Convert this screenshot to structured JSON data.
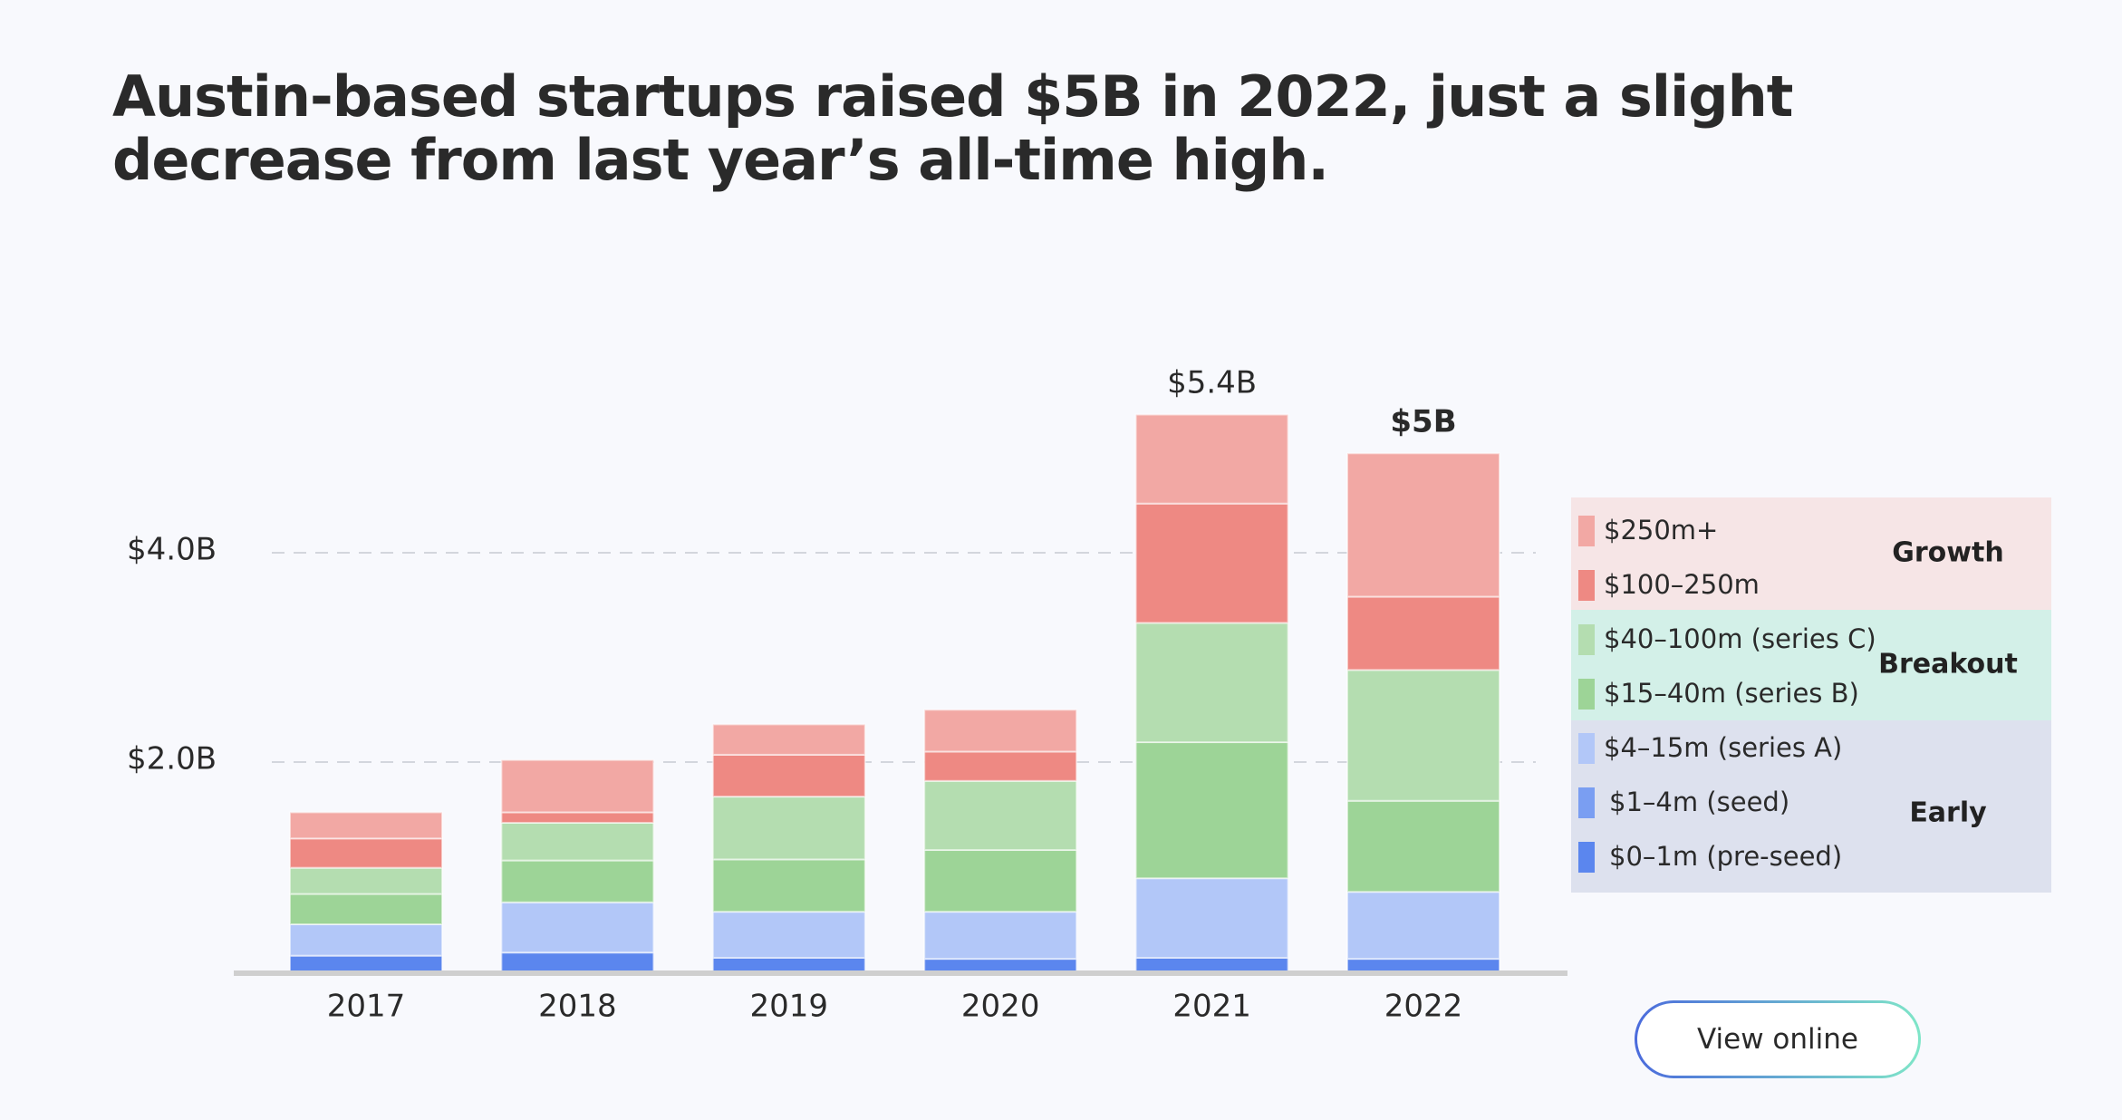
{
  "title": "Austin-based startups raised $5B in 2022, just a slight decrease from last year’s all-time high.",
  "view_online_label": "View online",
  "chart_data": {
    "type": "bar",
    "stacked": true,
    "categories": [
      "2017",
      "2018",
      "2019",
      "2020",
      "2021",
      "2022"
    ],
    "y_ticks": [
      {
        "value": 2.0,
        "label": "$2.0B"
      },
      {
        "value": 4.0,
        "label": "$4.0B"
      }
    ],
    "ylim": [
      0,
      5.7
    ],
    "grid": "horizontal dashed",
    "totals_labels": [
      {
        "category": "2021",
        "label": "$5.4B",
        "bold": false
      },
      {
        "category": "2022",
        "label": "$5B",
        "bold": true
      }
    ],
    "series": [
      {
        "name": "$0–1m (pre-seed)",
        "color": "#5b86ee",
        "values": [
          0.15,
          0.18,
          0.13,
          0.12,
          0.13,
          0.12
        ]
      },
      {
        "name": "$1–4m (seed)",
        "color": "#7a9ef2",
        "values": [
          0,
          0,
          0,
          0,
          0,
          0
        ]
      },
      {
        "name": "$4–15m (series A)",
        "color": "#b2c7f8",
        "values": [
          0.3,
          0.48,
          0.44,
          0.45,
          0.76,
          0.64
        ]
      },
      {
        "name": "$15–40m (series B)",
        "color": "#9dd497",
        "values": [
          0.29,
          0.4,
          0.5,
          0.59,
          1.3,
          0.87
        ]
      },
      {
        "name": "$40–100m (series C)",
        "color": "#b4ddb0",
        "values": [
          0.25,
          0.36,
          0.6,
          0.66,
          1.14,
          1.25
        ]
      },
      {
        "name": "$100–250m",
        "color": "#ee8983",
        "values": [
          0.28,
          0.1,
          0.4,
          0.28,
          1.14,
          0.7
        ]
      },
      {
        "name": "$250m+",
        "color": "#f2a8a4",
        "values": [
          0.25,
          0.5,
          0.29,
          0.4,
          0.85,
          1.37
        ]
      }
    ],
    "legend": {
      "placement": "right",
      "groups": [
        {
          "name": "Growth",
          "background": "#f6e5e6",
          "items": [
            "$250m+",
            "$100–250m"
          ]
        },
        {
          "name": "Breakout",
          "background": "#d3f0e8",
          "items": [
            "$40–100m (series C)",
            "$15–40m (series B)"
          ]
        },
        {
          "name": "Early",
          "background": "#dde1ee",
          "items": [
            "$4–15m (series A)",
            "$1–4m (seed)",
            "$0–1m (pre-seed)"
          ]
        }
      ]
    }
  }
}
